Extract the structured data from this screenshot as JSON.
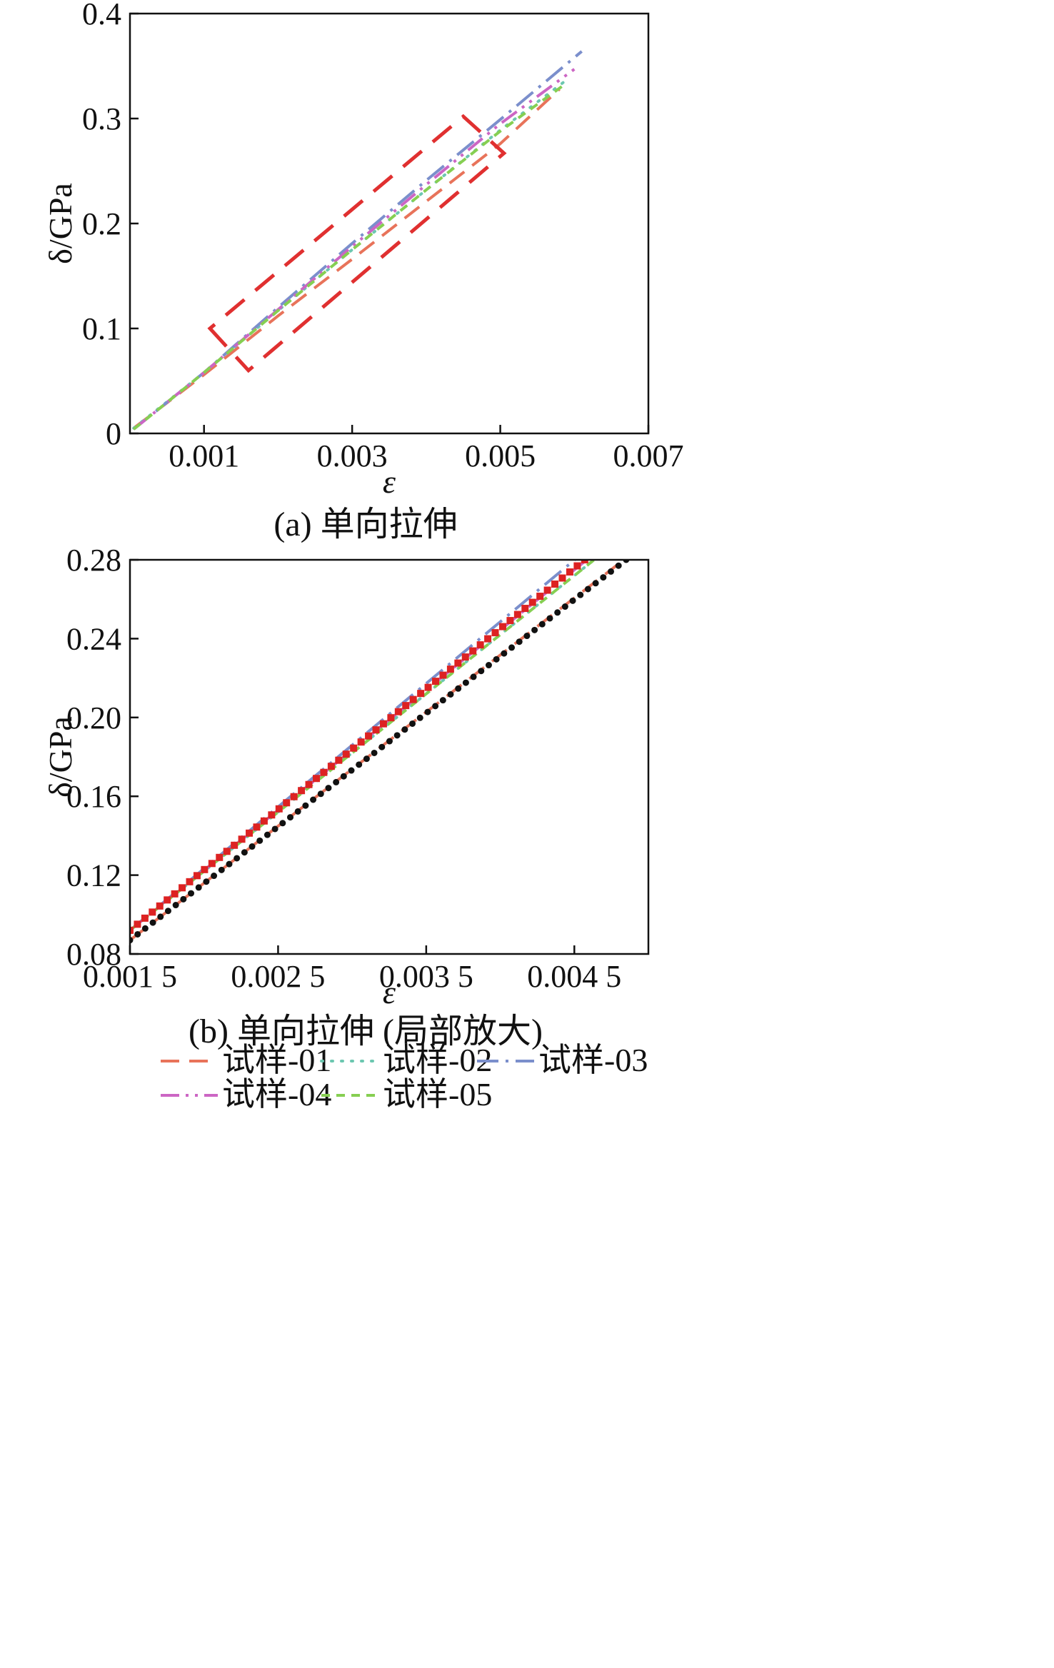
{
  "chart_data": [
    {
      "type": "line",
      "caption": "(a) 单向拉伸",
      "xlabel": "ε",
      "ylabel": "δ/GPa",
      "xlim": [
        0,
        0.007
      ],
      "ylim": [
        0,
        0.4
      ],
      "xticks": [
        0.001,
        0.003,
        0.005,
        0.007
      ],
      "xtick_labels": [
        "0.001",
        "0.003",
        "0.005",
        "0.007"
      ],
      "yticks": [
        0,
        0.1,
        0.2,
        0.3,
        0.4
      ],
      "ytick_labels": [
        "0",
        "0.1",
        "0.2",
        "0.3",
        "0.4"
      ],
      "annotations": [
        {
          "type": "dashed-rectangle",
          "color": "#e03030",
          "corners": [
            [
              0.00108,
              0.1
            ],
            [
              0.0016,
              0.06
            ],
            [
              0.00505,
              0.267
            ],
            [
              0.0045,
              0.302
            ]
          ]
        }
      ],
      "series": [
        {
          "name": "试样-01",
          "color": "#e8735a",
          "dash": "dash",
          "x": [
            5e-05,
            0.001,
            0.002,
            0.003,
            0.004,
            0.005,
            0.0058
          ],
          "y": [
            0.005,
            0.056,
            0.112,
            0.166,
            0.221,
            0.276,
            0.328
          ]
        },
        {
          "name": "试样-02",
          "color": "#6cc7b0",
          "dash": "dot",
          "x": [
            5e-05,
            0.001,
            0.002,
            0.003,
            0.004,
            0.005,
            0.0059
          ],
          "y": [
            0.005,
            0.058,
            0.117,
            0.175,
            0.232,
            0.289,
            0.337
          ]
        },
        {
          "name": "试样-03",
          "color": "#7b8fcc",
          "dash": "dashdot",
          "x": [
            5e-05,
            0.001,
            0.002,
            0.003,
            0.004,
            0.005,
            0.0061
          ],
          "y": [
            0.004,
            0.058,
            0.12,
            0.181,
            0.241,
            0.299,
            0.364
          ]
        },
        {
          "name": "试样-04",
          "color": "#cc66c4",
          "dash": "dashdotdot",
          "x": [
            5e-05,
            0.001,
            0.002,
            0.003,
            0.004,
            0.005,
            0.006
          ],
          "y": [
            0.004,
            0.058,
            0.118,
            0.178,
            0.237,
            0.295,
            0.347
          ]
        },
        {
          "name": "试样-05",
          "color": "#86cf52",
          "dash": "shortdash",
          "x": [
            5e-05,
            0.001,
            0.002,
            0.003,
            0.004,
            0.005,
            0.0059
          ],
          "y": [
            0.004,
            0.058,
            0.117,
            0.175,
            0.232,
            0.288,
            0.334
          ]
        }
      ]
    },
    {
      "type": "line",
      "caption": "(b) 单向拉伸 (局部放大)",
      "xlabel": "ε",
      "ylabel": "δ/GPa",
      "xlim": [
        0.0015,
        0.005
      ],
      "ylim": [
        0.08,
        0.28
      ],
      "xticks": [
        0.0015,
        0.0025,
        0.0035,
        0.0045
      ],
      "xtick_labels": [
        "0.001 5",
        "0.002 5",
        "0.003 5",
        "0.004 5"
      ],
      "yticks": [
        0.08,
        0.12,
        0.16,
        0.2,
        0.24,
        0.28
      ],
      "ytick_labels": [
        "0.08",
        "0.12",
        "0.16",
        "0.20",
        "0.24",
        "0.28"
      ],
      "series": [
        {
          "name": "试样-01",
          "color": "#e8735a",
          "dash": "dash",
          "x": [
            0.0015,
            0.0048
          ],
          "y": [
            0.087,
            0.278
          ]
        },
        {
          "name": "试样-02",
          "color": "#6cc7b0",
          "dash": "dot",
          "x": [
            0.0015,
            0.00465
          ],
          "y": [
            0.092,
            0.281
          ]
        },
        {
          "name": "试样-03",
          "color": "#7b8fcc",
          "dash": "dashdot",
          "x": [
            0.0015,
            0.00455
          ],
          "y": [
            0.092,
            0.283
          ]
        },
        {
          "name": "试样-04",
          "color": "#cc66c4",
          "dash": "dashdotdot",
          "x": [
            0.0015,
            0.0046
          ],
          "y": [
            0.092,
            0.281
          ]
        },
        {
          "name": "试样-05",
          "color": "#86cf52",
          "dash": "shortdash",
          "x": [
            0.0015,
            0.00465
          ],
          "y": [
            0.092,
            0.281
          ]
        },
        {
          "name": "",
          "color": "#dd2222",
          "marker": "square",
          "x_start": 0.0015,
          "x_end": 0.00457,
          "y_start": 0.092,
          "y_end": 0.28,
          "count": 62
        },
        {
          "name": "",
          "color": "#111111",
          "marker": "circle",
          "x_start": 0.0015,
          "x_end": 0.00485,
          "y_start": 0.087,
          "y_end": 0.28,
          "count": 66
        }
      ]
    }
  ],
  "legend": {
    "items": [
      {
        "label": "试样-01",
        "color": "#e8735a",
        "dash": "dash"
      },
      {
        "label": "试样-02",
        "color": "#6cc7b0",
        "dash": "dot"
      },
      {
        "label": "试样-03",
        "color": "#7b8fcc",
        "dash": "dashdot"
      },
      {
        "label": "试样-04",
        "color": "#cc66c4",
        "dash": "dashdotdot"
      },
      {
        "label": "试样-05",
        "color": "#86cf52",
        "dash": "shortdash"
      }
    ]
  }
}
